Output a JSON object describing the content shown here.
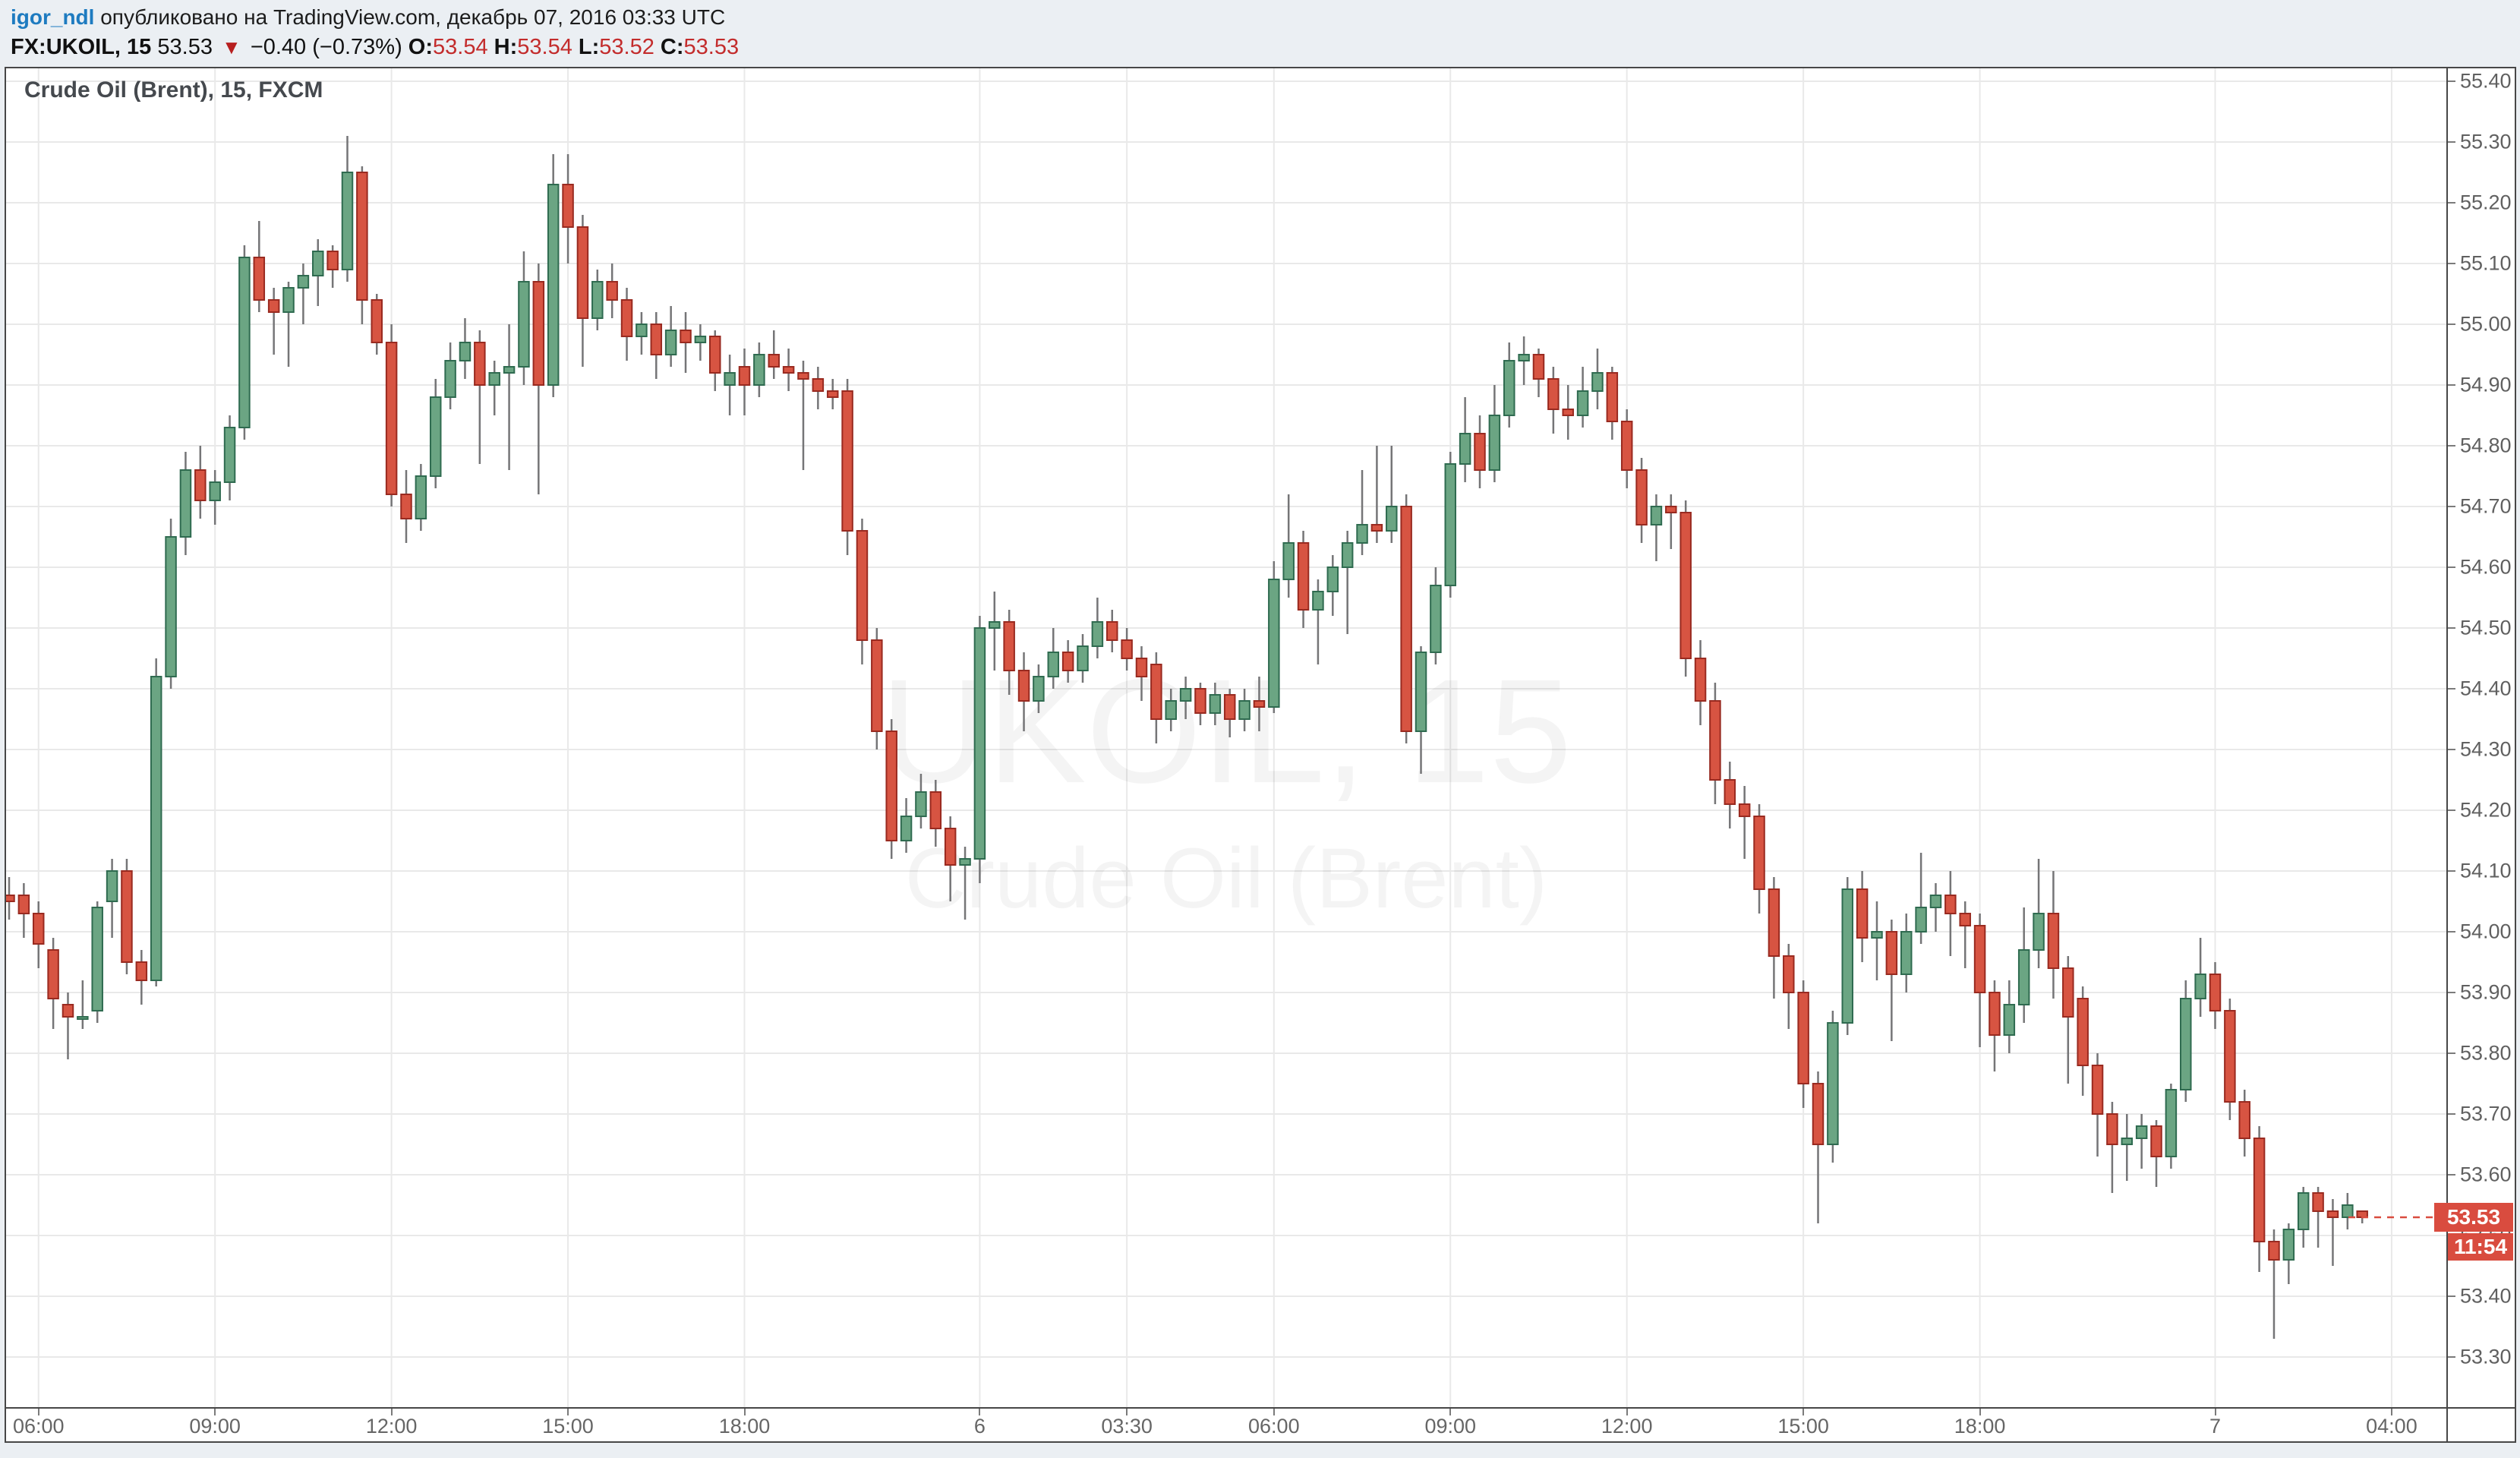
{
  "header": {
    "user": "igor_ndl",
    "published": " опубликовано на TradingView.com, декабрь 07, 2016 03:33 UTC",
    "symbol": "FX:UKOIL, 15",
    "last": "53.53",
    "arrow": "▼",
    "change": "−0.40 (−0.73%)",
    "o_label": "O:",
    "o_val": "53.54",
    "h_label": "H:",
    "h_val": "53.54",
    "l_label": "L:",
    "l_val": "53.52",
    "c_label": "C:",
    "c_val": "53.53"
  },
  "chart": {
    "title": "Crude Oil (Brent), 15, FXCM",
    "watermark_line1": "UKOIL, 15",
    "watermark_line2": "Crude Oil (Brent)",
    "price_tag": "53.53",
    "countdown": "11:54"
  },
  "colors": {
    "up_fill": "#6ba583",
    "up_border": "#2f6b50",
    "down_fill": "#d75442",
    "down_border": "#992a20",
    "wick": "#757577",
    "grid": "#e9e9e9",
    "tag_bg": "#d94c3f",
    "axis_text": "#606060",
    "link_blue": "#1e7bc0",
    "header_red": "#c32c2c"
  },
  "chart_data": {
    "type": "candlestick",
    "title": "Crude Oil (Brent), 15, FXCM",
    "symbol": "FX:UKOIL",
    "interval_minutes": 15,
    "legend": "UKOIL 15 candlestick chart, published by igor_ndl on TradingView.com, Dec 07 2016 03:33 UTC",
    "grid": true,
    "price_axis": {
      "min": 53.3,
      "max": 55.4,
      "step": 0.1,
      "position": "right",
      "labels": [
        "55.40",
        "55.30",
        "55.20",
        "55.10",
        "55.00",
        "54.90",
        "54.80",
        "54.70",
        "54.60",
        "54.50",
        "54.40",
        "54.30",
        "54.20",
        "54.10",
        "54.00",
        "53.90",
        "53.80",
        "53.70",
        "53.60",
        "53.50",
        "53.40",
        "53.30"
      ]
    },
    "time_labels": [
      {
        "i": 2,
        "label": "06:00"
      },
      {
        "i": 14,
        "label": "09:00"
      },
      {
        "i": 26,
        "label": "12:00"
      },
      {
        "i": 38,
        "label": "15:00"
      },
      {
        "i": 50,
        "label": "18:00"
      },
      {
        "i": 66,
        "label": "6"
      },
      {
        "i": 76,
        "label": "03:30"
      },
      {
        "i": 86,
        "label": "06:00"
      },
      {
        "i": 98,
        "label": "09:00"
      },
      {
        "i": 110,
        "label": "12:00"
      },
      {
        "i": 122,
        "label": "15:00"
      },
      {
        "i": 134,
        "label": "18:00"
      },
      {
        "i": 150,
        "label": "7"
      },
      {
        "i": 162,
        "label": "04:00"
      }
    ],
    "last_price": 53.53,
    "candles": [
      [
        54.06,
        54.09,
        54.02,
        54.05
      ],
      [
        54.06,
        54.08,
        53.99,
        54.03
      ],
      [
        54.03,
        54.05,
        53.94,
        53.98
      ],
      [
        53.97,
        53.99,
        53.84,
        53.89
      ],
      [
        53.88,
        53.9,
        53.79,
        53.86
      ],
      [
        53.86,
        53.92,
        53.84,
        53.86
      ],
      [
        53.87,
        54.05,
        53.85,
        54.04
      ],
      [
        54.05,
        54.12,
        53.99,
        54.1
      ],
      [
        54.1,
        54.12,
        53.93,
        53.95
      ],
      [
        53.95,
        53.97,
        53.88,
        53.92
      ],
      [
        53.92,
        54.45,
        53.91,
        54.42
      ],
      [
        54.42,
        54.68,
        54.4,
        54.65
      ],
      [
        54.65,
        54.79,
        54.62,
        54.76
      ],
      [
        54.76,
        54.8,
        54.68,
        54.71
      ],
      [
        54.71,
        54.76,
        54.67,
        54.74
      ],
      [
        54.74,
        54.85,
        54.71,
        54.83
      ],
      [
        54.83,
        55.13,
        54.81,
        55.11
      ],
      [
        55.11,
        55.17,
        55.02,
        55.04
      ],
      [
        55.04,
        55.06,
        54.95,
        55.02
      ],
      [
        55.02,
        55.07,
        54.93,
        55.06
      ],
      [
        55.06,
        55.1,
        55.0,
        55.08
      ],
      [
        55.08,
        55.14,
        55.03,
        55.12
      ],
      [
        55.12,
        55.13,
        55.06,
        55.09
      ],
      [
        55.09,
        55.31,
        55.07,
        55.25
      ],
      [
        55.25,
        55.26,
        55.0,
        55.04
      ],
      [
        55.04,
        55.05,
        54.95,
        54.97
      ],
      [
        54.97,
        55.0,
        54.7,
        54.72
      ],
      [
        54.72,
        54.76,
        54.64,
        54.68
      ],
      [
        54.68,
        54.77,
        54.66,
        54.75
      ],
      [
        54.75,
        54.91,
        54.73,
        54.88
      ],
      [
        54.88,
        54.97,
        54.86,
        54.94
      ],
      [
        54.94,
        55.01,
        54.91,
        54.97
      ],
      [
        54.97,
        54.99,
        54.77,
        54.9
      ],
      [
        54.9,
        54.94,
        54.85,
        54.92
      ],
      [
        54.92,
        55.0,
        54.76,
        54.93
      ],
      [
        54.93,
        55.12,
        54.9,
        55.07
      ],
      [
        55.07,
        55.1,
        54.72,
        54.9
      ],
      [
        54.9,
        55.28,
        54.88,
        55.23
      ],
      [
        55.23,
        55.28,
        55.1,
        55.16
      ],
      [
        55.16,
        55.18,
        54.93,
        55.01
      ],
      [
        55.01,
        55.09,
        54.99,
        55.07
      ],
      [
        55.07,
        55.1,
        55.01,
        55.04
      ],
      [
        55.04,
        55.06,
        54.94,
        54.98
      ],
      [
        54.98,
        55.02,
        54.95,
        55.0
      ],
      [
        55.0,
        55.02,
        54.91,
        54.95
      ],
      [
        54.95,
        55.03,
        54.93,
        54.99
      ],
      [
        54.99,
        55.02,
        54.92,
        54.97
      ],
      [
        54.97,
        55.0,
        54.94,
        54.98
      ],
      [
        54.98,
        54.99,
        54.89,
        54.92
      ],
      [
        54.9,
        54.95,
        54.85,
        54.92
      ],
      [
        54.93,
        54.96,
        54.85,
        54.9
      ],
      [
        54.9,
        54.97,
        54.88,
        54.95
      ],
      [
        54.95,
        54.99,
        54.91,
        54.93
      ],
      [
        54.93,
        54.96,
        54.89,
        54.92
      ],
      [
        54.92,
        54.94,
        54.76,
        54.91
      ],
      [
        54.91,
        54.93,
        54.86,
        54.89
      ],
      [
        54.89,
        54.91,
        54.86,
        54.88
      ],
      [
        54.89,
        54.91,
        54.62,
        54.66
      ],
      [
        54.66,
        54.68,
        54.44,
        54.48
      ],
      [
        54.48,
        54.5,
        54.3,
        54.33
      ],
      [
        54.33,
        54.35,
        54.12,
        54.15
      ],
      [
        54.15,
        54.22,
        54.13,
        54.19
      ],
      [
        54.19,
        54.26,
        54.17,
        54.23
      ],
      [
        54.23,
        54.25,
        54.14,
        54.17
      ],
      [
        54.17,
        54.19,
        54.05,
        54.11
      ],
      [
        54.11,
        54.14,
        54.02,
        54.12
      ],
      [
        54.12,
        54.52,
        54.08,
        54.5
      ],
      [
        54.5,
        54.56,
        54.43,
        54.51
      ],
      [
        54.51,
        54.53,
        54.39,
        54.43
      ],
      [
        54.43,
        54.46,
        54.33,
        54.38
      ],
      [
        54.38,
        54.44,
        54.36,
        54.42
      ],
      [
        54.42,
        54.5,
        54.4,
        54.46
      ],
      [
        54.46,
        54.48,
        54.41,
        54.43
      ],
      [
        54.43,
        54.49,
        54.41,
        54.47
      ],
      [
        54.47,
        54.55,
        54.45,
        54.51
      ],
      [
        54.51,
        54.53,
        54.46,
        54.48
      ],
      [
        54.48,
        54.5,
        54.43,
        54.45
      ],
      [
        54.45,
        54.47,
        54.38,
        54.42
      ],
      [
        54.44,
        54.46,
        54.31,
        54.35
      ],
      [
        54.35,
        54.4,
        54.33,
        54.38
      ],
      [
        54.38,
        54.42,
        54.35,
        54.4
      ],
      [
        54.4,
        54.41,
        54.34,
        54.36
      ],
      [
        54.36,
        54.41,
        54.34,
        54.39
      ],
      [
        54.39,
        54.4,
        54.32,
        54.35
      ],
      [
        54.35,
        54.4,
        54.33,
        54.38
      ],
      [
        54.38,
        54.42,
        54.33,
        54.37
      ],
      [
        54.37,
        54.61,
        54.36,
        54.58
      ],
      [
        54.58,
        54.72,
        54.55,
        54.64
      ],
      [
        54.64,
        54.66,
        54.5,
        54.53
      ],
      [
        54.53,
        54.58,
        54.44,
        54.56
      ],
      [
        54.56,
        54.62,
        54.52,
        54.6
      ],
      [
        54.6,
        54.66,
        54.49,
        54.64
      ],
      [
        54.64,
        54.76,
        54.62,
        54.67
      ],
      [
        54.67,
        54.8,
        54.64,
        54.66
      ],
      [
        54.66,
        54.8,
        54.64,
        54.7
      ],
      [
        54.7,
        54.72,
        54.31,
        54.33
      ],
      [
        54.33,
        54.47,
        54.26,
        54.46
      ],
      [
        54.46,
        54.6,
        54.44,
        54.57
      ],
      [
        54.57,
        54.79,
        54.55,
        54.77
      ],
      [
        54.77,
        54.88,
        54.74,
        54.82
      ],
      [
        54.82,
        54.85,
        54.73,
        54.76
      ],
      [
        54.76,
        54.9,
        54.74,
        54.85
      ],
      [
        54.85,
        54.97,
        54.83,
        54.94
      ],
      [
        54.94,
        54.98,
        54.9,
        54.95
      ],
      [
        54.95,
        54.96,
        54.88,
        54.91
      ],
      [
        54.91,
        54.93,
        54.82,
        54.86
      ],
      [
        54.86,
        54.9,
        54.81,
        54.85
      ],
      [
        54.85,
        54.93,
        54.83,
        54.89
      ],
      [
        54.89,
        54.96,
        54.86,
        54.92
      ],
      [
        54.92,
        54.93,
        54.81,
        54.84
      ],
      [
        54.84,
        54.86,
        54.73,
        54.76
      ],
      [
        54.76,
        54.78,
        54.64,
        54.67
      ],
      [
        54.67,
        54.72,
        54.61,
        54.7
      ],
      [
        54.7,
        54.72,
        54.63,
        54.69
      ],
      [
        54.69,
        54.71,
        54.42,
        54.45
      ],
      [
        54.45,
        54.48,
        54.34,
        54.38
      ],
      [
        54.38,
        54.41,
        54.21,
        54.25
      ],
      [
        54.25,
        54.28,
        54.17,
        54.21
      ],
      [
        54.21,
        54.24,
        54.12,
        54.19
      ],
      [
        54.19,
        54.21,
        54.03,
        54.07
      ],
      [
        54.07,
        54.09,
        53.89,
        53.96
      ],
      [
        53.96,
        53.98,
        53.84,
        53.9
      ],
      [
        53.9,
        53.92,
        53.71,
        53.75
      ],
      [
        53.75,
        53.77,
        53.52,
        53.65
      ],
      [
        53.65,
        53.87,
        53.62,
        53.85
      ],
      [
        53.85,
        54.09,
        53.83,
        54.07
      ],
      [
        54.07,
        54.1,
        53.95,
        53.99
      ],
      [
        53.99,
        54.05,
        53.92,
        54.0
      ],
      [
        54.0,
        54.02,
        53.82,
        53.93
      ],
      [
        53.93,
        54.03,
        53.9,
        54.0
      ],
      [
        54.0,
        54.13,
        53.98,
        54.04
      ],
      [
        54.04,
        54.08,
        54.0,
        54.06
      ],
      [
        54.06,
        54.1,
        53.96,
        54.03
      ],
      [
        54.03,
        54.05,
        53.94,
        54.01
      ],
      [
        54.01,
        54.03,
        53.81,
        53.9
      ],
      [
        53.9,
        53.92,
        53.77,
        53.83
      ],
      [
        53.83,
        53.92,
        53.8,
        53.88
      ],
      [
        53.88,
        54.04,
        53.85,
        53.97
      ],
      [
        53.97,
        54.12,
        53.94,
        54.03
      ],
      [
        54.03,
        54.1,
        53.89,
        53.94
      ],
      [
        53.94,
        53.96,
        53.75,
        53.86
      ],
      [
        53.89,
        53.91,
        53.73,
        53.78
      ],
      [
        53.78,
        53.8,
        53.63,
        53.7
      ],
      [
        53.7,
        53.72,
        53.57,
        53.65
      ],
      [
        53.65,
        53.7,
        53.59,
        53.66
      ],
      [
        53.66,
        53.7,
        53.61,
        53.68
      ],
      [
        53.68,
        53.69,
        53.58,
        53.63
      ],
      [
        53.63,
        53.75,
        53.61,
        53.74
      ],
      [
        53.74,
        53.92,
        53.72,
        53.89
      ],
      [
        53.89,
        53.99,
        53.86,
        53.93
      ],
      [
        53.93,
        53.95,
        53.84,
        53.87
      ],
      [
        53.87,
        53.89,
        53.69,
        53.72
      ],
      [
        53.72,
        53.74,
        53.63,
        53.66
      ],
      [
        53.66,
        53.68,
        53.44,
        53.49
      ],
      [
        53.49,
        53.51,
        53.33,
        53.46
      ],
      [
        53.46,
        53.52,
        53.42,
        53.51
      ],
      [
        53.51,
        53.58,
        53.48,
        53.57
      ],
      [
        53.57,
        53.58,
        53.48,
        53.54
      ],
      [
        53.54,
        53.56,
        53.45,
        53.53
      ],
      [
        53.53,
        53.57,
        53.51,
        53.55
      ],
      [
        53.54,
        53.54,
        53.52,
        53.53
      ]
    ]
  }
}
